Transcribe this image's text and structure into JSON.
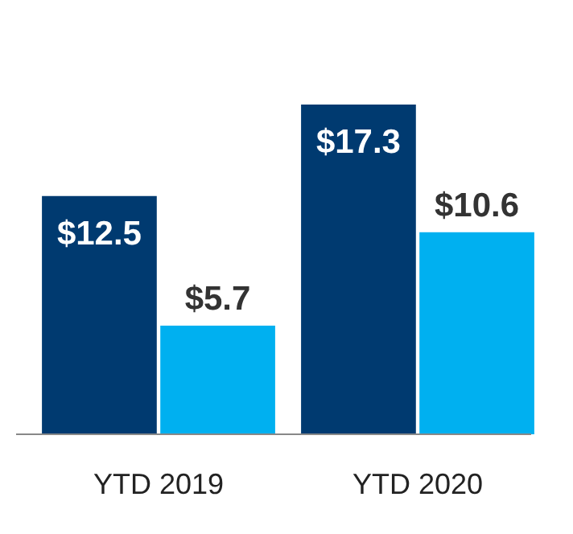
{
  "chart_data": {
    "type": "bar",
    "categories": [
      "YTD 2019",
      "YTD 2020"
    ],
    "series": [
      {
        "color": "#003a70",
        "values": [
          12.5,
          17.3
        ],
        "value_labels": [
          "$12.5",
          "$17.3"
        ]
      },
      {
        "color": "#00b0f0",
        "values": [
          5.7,
          10.6
        ],
        "value_labels": [
          "$5.7",
          "$10.6"
        ]
      }
    ]
  }
}
